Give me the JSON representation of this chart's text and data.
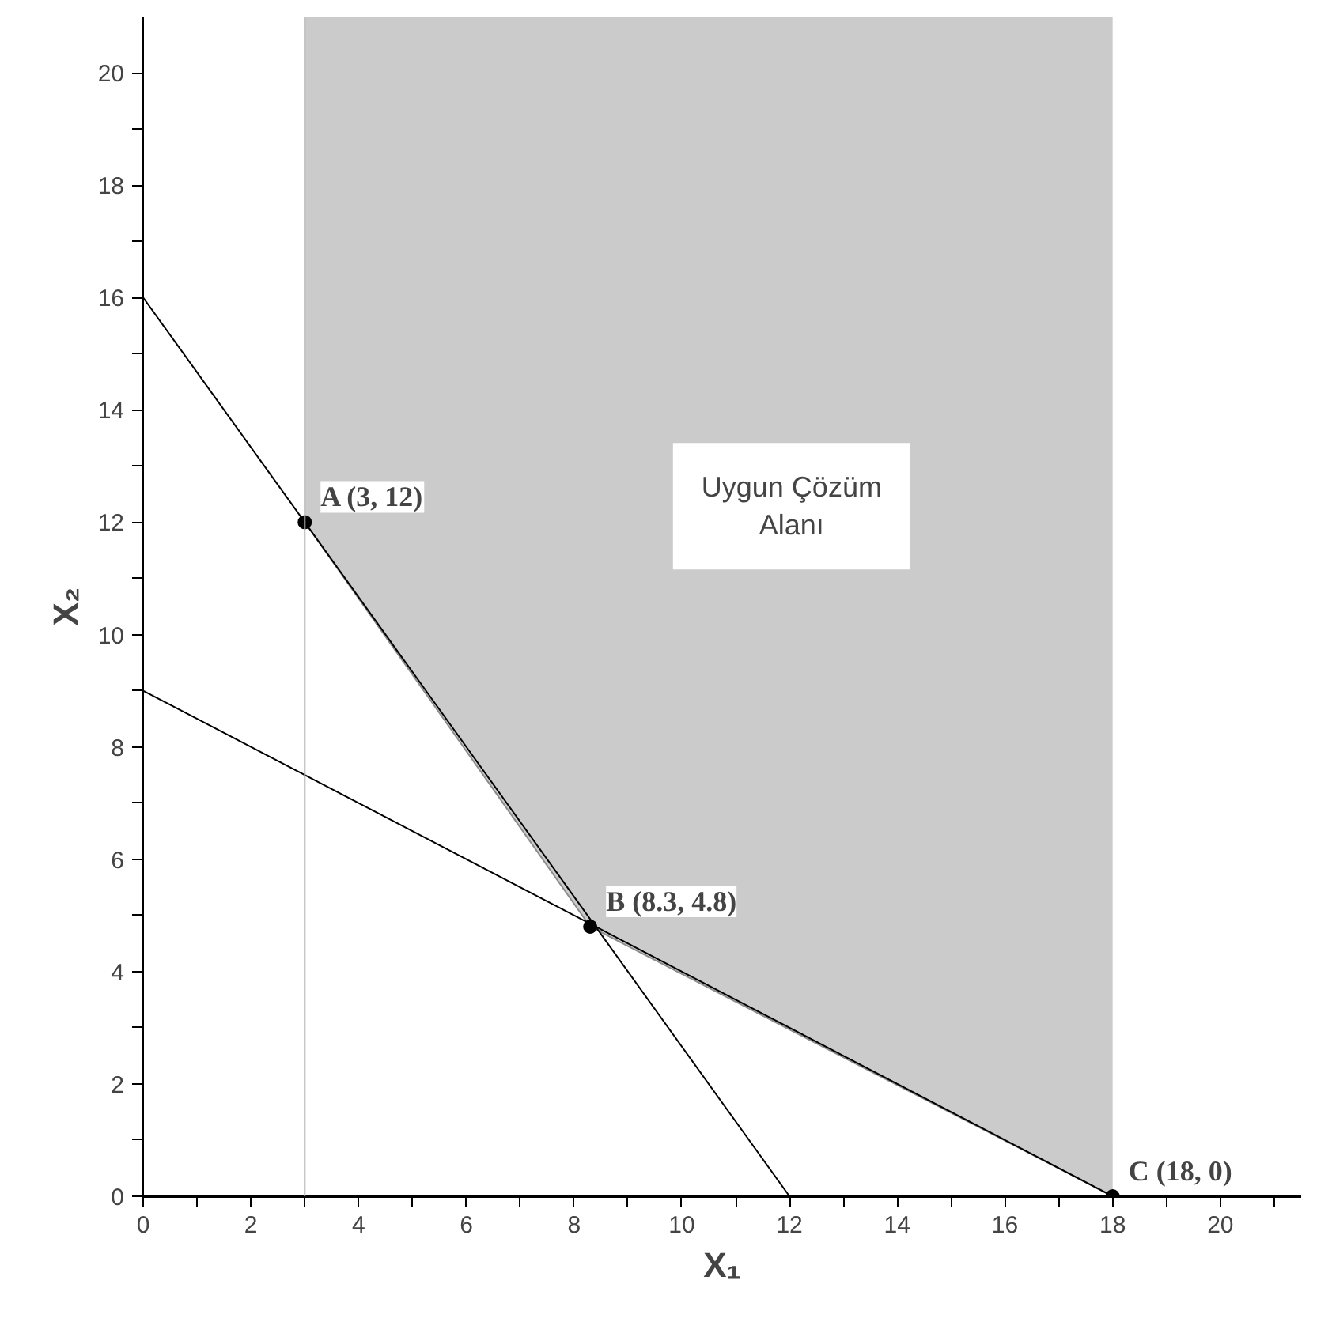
{
  "chart_data": {
    "type": "line",
    "xlabel": "X₁",
    "ylabel": "X₂",
    "xlim": [
      0,
      21.5
    ],
    "ylim": [
      0,
      21
    ],
    "xticks": [
      0,
      {
        "value": 1,
        "label": null
      },
      2,
      {
        "value": 3,
        "label": null
      },
      4,
      {
        "value": 5,
        "label": null
      },
      6,
      {
        "value": 7,
        "label": null
      },
      8,
      {
        "value": 9,
        "label": null
      },
      10,
      {
        "value": 11,
        "label": null
      },
      12,
      {
        "value": 13,
        "label": null
      },
      14,
      {
        "value": 15,
        "label": null
      },
      16,
      {
        "value": 17,
        "label": null
      },
      18,
      {
        "value": 19,
        "label": null
      },
      20,
      {
        "value": 21,
        "label": null
      }
    ],
    "yticks": [
      0,
      {
        "value": 1,
        "label": null
      },
      2,
      {
        "value": 3,
        "label": null
      },
      4,
      {
        "value": 5,
        "label": null
      },
      6,
      {
        "value": 7,
        "label": null
      },
      8,
      {
        "value": 9,
        "label": null
      },
      10,
      {
        "value": 11,
        "label": null
      },
      12,
      {
        "value": 13,
        "label": null
      },
      14,
      {
        "value": 15,
        "label": null
      },
      16,
      {
        "value": 17,
        "label": null
      },
      18,
      {
        "value": 19,
        "label": null
      },
      20
    ],
    "series": [
      {
        "type": "line",
        "color": "#8c8c8c",
        "x": [
          3,
          8.3,
          18
        ],
        "values": [
          12,
          4.8,
          0
        ],
        "lower": [
          12,
          4.8,
          0
        ],
        "upper": [
          21,
          21,
          21
        ]
      },
      {
        "color": "#000000",
        "x": [
          0,
          12
        ],
        "values": [
          16,
          0
        ]
      },
      {
        "color": "#000000",
        "x": [
          0,
          18
        ],
        "values": [
          9,
          0
        ]
      },
      {
        "type": "scatter",
        "marker": "circle",
        "color": "#000000",
        "x": [
          3,
          8.3,
          18
        ],
        "values": [
          12,
          4.8,
          0
        ]
      }
    ],
    "ref_lines": [
      {
        "axis": "x",
        "value": 3,
        "label": null,
        "color": "#b0b0b0"
      }
    ],
    "annotations": [
      {
        "text": "A (3, 12)",
        "x": 3,
        "y": 12
      },
      {
        "text": "B (8.3, 4.8)",
        "x": 8.3,
        "y": 4.8
      },
      {
        "text": "C (18, 0)",
        "x": 18,
        "y": 0
      },
      "Uygun Çözüm Alanı"
    ],
    "grid": false,
    "line_style": "solid"
  }
}
